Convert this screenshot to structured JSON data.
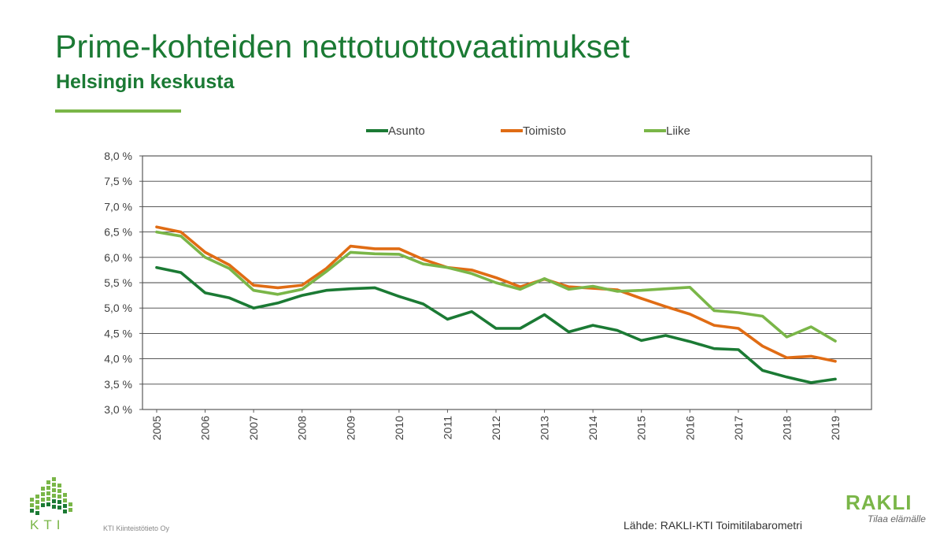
{
  "header": {
    "title": "Prime-kohteiden nettotuottovaatimukset",
    "subtitle": "Helsingin keskusta"
  },
  "footer": {
    "source": "Lähde: RAKLI-KTI Toimitilabarometri",
    "kti_company": "KTI Kiinteistötieto Oy",
    "kti_logo_text": "KTI",
    "rakli_logo_text": "RAKLI",
    "rakli_tagline": "Tilaa elämälle"
  },
  "colors": {
    "brand_green": "#1b7a34",
    "accent_green": "#7ab648"
  },
  "chart_data": {
    "type": "line",
    "title": "",
    "xlabel": "",
    "ylabel": "",
    "ylim": [
      3.0,
      8.0
    ],
    "y_ticks": [
      "3,0 %",
      "3,5 %",
      "4,0 %",
      "4,5 %",
      "5,0 %",
      "5,5 %",
      "6,0 %",
      "6,5 %",
      "7,0 %",
      "7,5 %",
      "8,0 %"
    ],
    "x_tick_labels": [
      "2005",
      "2006",
      "2007",
      "2008",
      "2009",
      "2010",
      "2011",
      "2012",
      "2013",
      "2014",
      "2015",
      "2016",
      "2017",
      "2018",
      "2019"
    ],
    "grid": true,
    "legend_position": "top",
    "x": [
      2005,
      2005.5,
      2006,
      2006.5,
      2007,
      2007.5,
      2008,
      2008.5,
      2009,
      2009.5,
      2010,
      2010.5,
      2011,
      2011.5,
      2012,
      2012.5,
      2013,
      2013.5,
      2014,
      2014.5,
      2015,
      2015.5,
      2016,
      2016.5,
      2017,
      2017.5,
      2018,
      2018.5,
      2019
    ],
    "series": [
      {
        "name": "Asunto",
        "color": "#1b7a34",
        "values": [
          5.8,
          5.7,
          5.3,
          5.2,
          5.0,
          5.1,
          5.25,
          5.35,
          5.38,
          5.4,
          5.23,
          5.08,
          4.78,
          4.93,
          4.6,
          4.6,
          4.87,
          4.53,
          4.66,
          4.56,
          4.36,
          4.46,
          4.34,
          4.2,
          4.18,
          3.77,
          3.64,
          3.53,
          3.6
        ]
      },
      {
        "name": "Toimisto",
        "color": "#e06c14",
        "values": [
          6.6,
          6.5,
          6.1,
          5.85,
          5.45,
          5.4,
          5.45,
          5.78,
          6.22,
          6.17,
          6.17,
          5.96,
          5.8,
          5.75,
          5.6,
          5.42,
          5.57,
          5.42,
          5.39,
          5.36,
          5.19,
          5.03,
          4.88,
          4.66,
          4.6,
          4.25,
          4.02,
          4.05,
          3.95
        ]
      },
      {
        "name": "Liike",
        "color": "#7ab648",
        "values": [
          6.5,
          6.42,
          6.0,
          5.78,
          5.35,
          5.27,
          5.37,
          5.72,
          6.1,
          6.07,
          6.06,
          5.87,
          5.8,
          5.68,
          5.5,
          5.37,
          5.58,
          5.37,
          5.43,
          5.33,
          5.35,
          5.38,
          5.41,
          4.95,
          4.91,
          4.84,
          4.43,
          4.63,
          4.35
        ]
      }
    ]
  }
}
